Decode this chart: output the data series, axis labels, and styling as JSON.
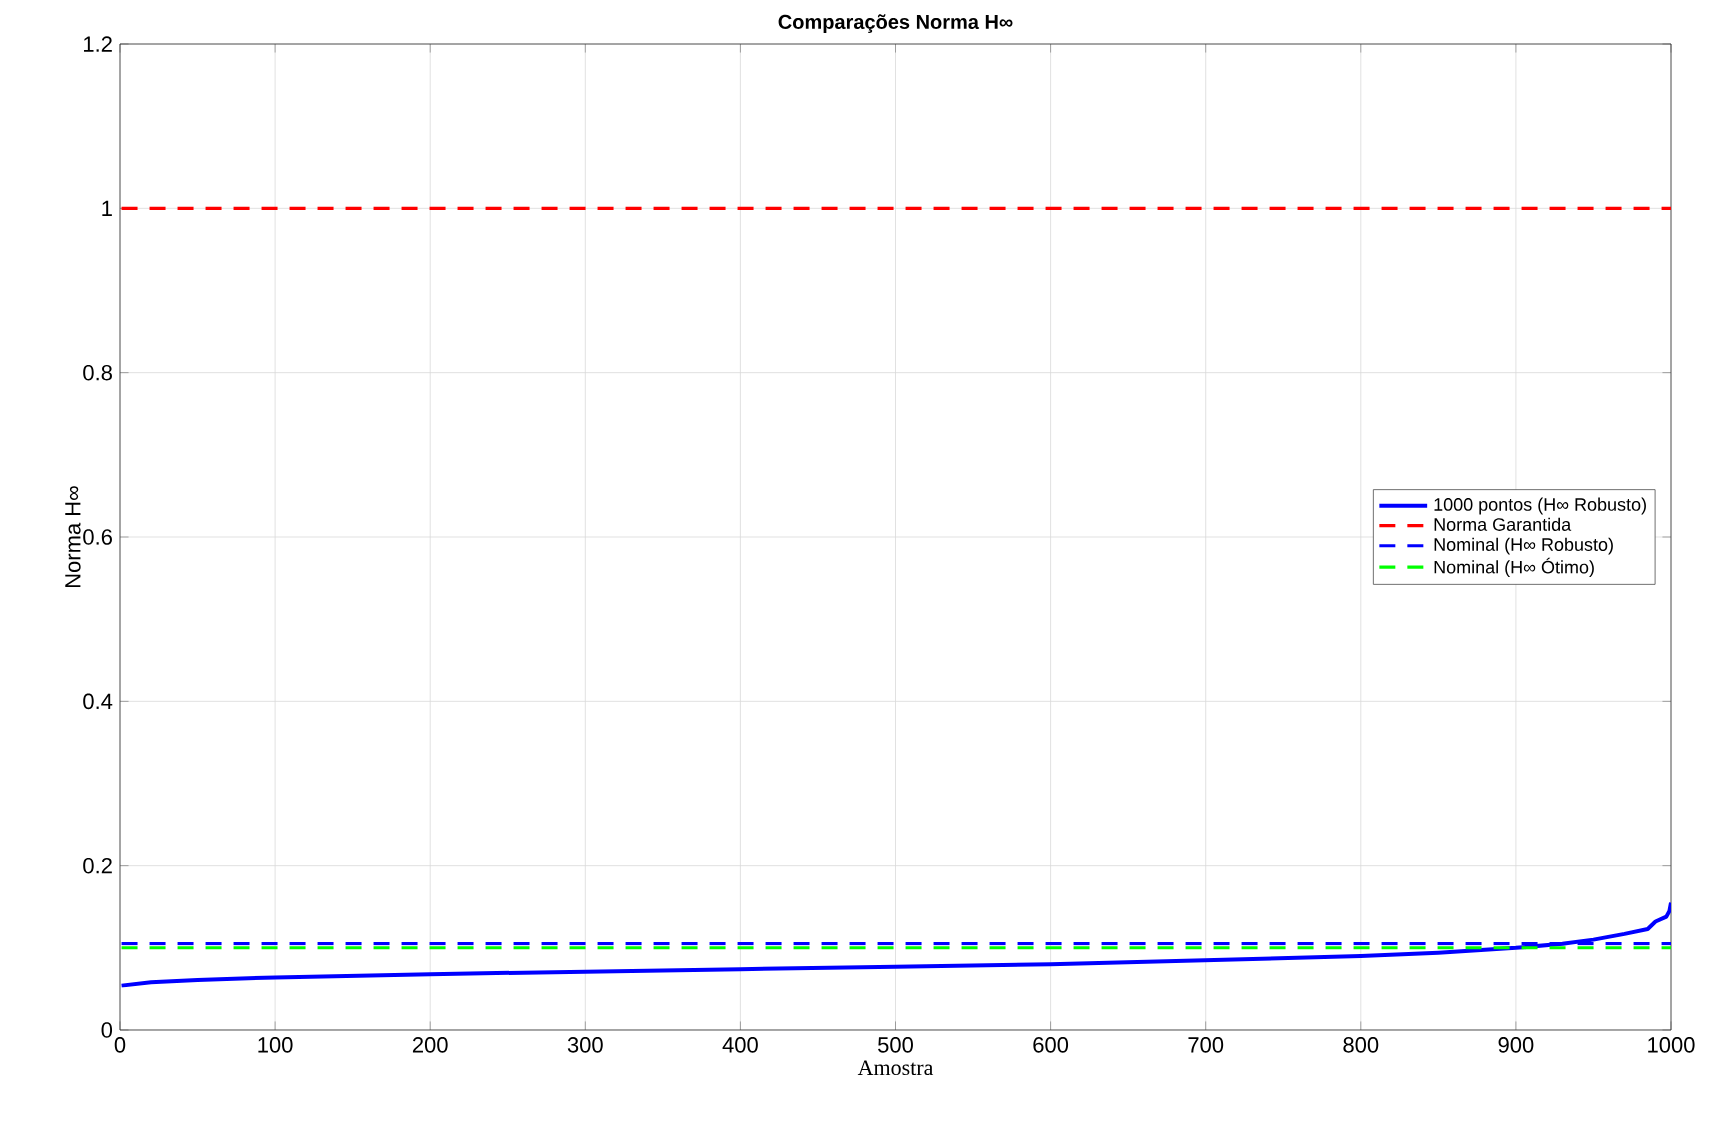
{
  "chart_data": {
    "type": "line",
    "title": "Comparações Norma H∞",
    "xlabel": "Amostra",
    "ylabel": "Norma H∞",
    "xlim": [
      0,
      1000
    ],
    "ylim": [
      0,
      1.2
    ],
    "xticks": [
      0,
      100,
      200,
      300,
      400,
      500,
      600,
      700,
      800,
      900,
      1000
    ],
    "yticks": [
      0,
      0.2,
      0.4,
      0.6,
      0.8,
      1,
      1.2
    ],
    "grid": true,
    "legend": "right",
    "marker": "none",
    "series": [
      {
        "name": "1000 pontos (H∞ Robusto)",
        "color": "#0000ff",
        "line_style": "solid",
        "x": [
          1,
          20,
          50,
          100,
          200,
          300,
          400,
          500,
          600,
          700,
          800,
          850,
          900,
          930,
          950,
          970,
          985,
          990,
          997,
          999,
          1000
        ],
        "values": [
          0.054,
          0.058,
          0.061,
          0.064,
          0.068,
          0.071,
          0.074,
          0.077,
          0.08,
          0.085,
          0.09,
          0.094,
          0.1,
          0.105,
          0.11,
          0.117,
          0.123,
          0.132,
          0.138,
          0.145,
          0.155
        ]
      },
      {
        "name": "Norma Garantida",
        "color": "#ff0000",
        "line_style": "dashed",
        "x": [
          1,
          1000
        ],
        "values": [
          1,
          1
        ]
      },
      {
        "name": "Nominal (H∞ Robusto)",
        "color": "#0000ff",
        "line_style": "dashed",
        "x": [
          1,
          1000
        ],
        "values": [
          0.105,
          0.105
        ]
      },
      {
        "name": "Nominal (H∞ Ótimo)",
        "color": "#00ff00",
        "line_style": "dashed",
        "x": [
          1,
          1000
        ],
        "values": [
          0.1,
          0.1
        ]
      }
    ]
  }
}
